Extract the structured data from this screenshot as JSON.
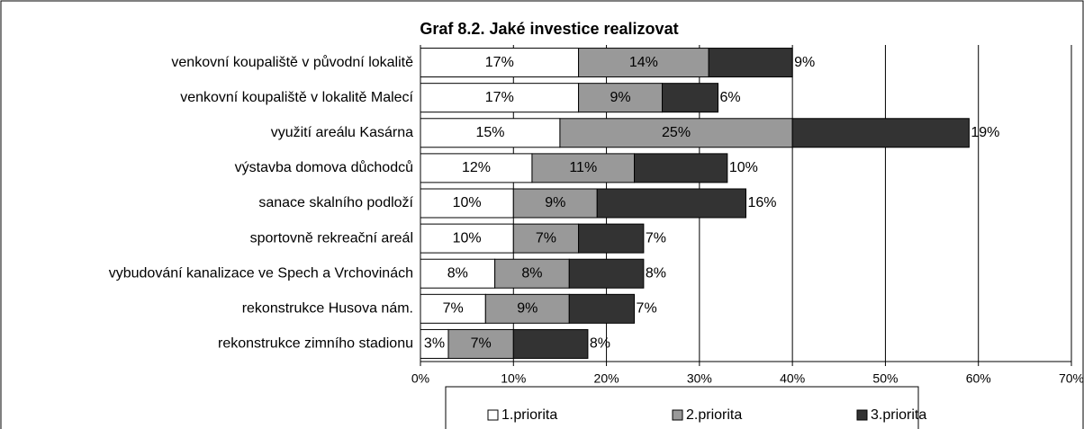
{
  "chart_data": {
    "type": "bar",
    "orientation": "horizontal",
    "stacked": true,
    "title": "Graf 8.2. Jaké investice realizovat",
    "categories": [
      "venkovní koupaliště v původní lokalitě",
      "venkovní koupaliště v lokalitě Malecí",
      "využití areálu Kasárna",
      "výstavba domova důchodců",
      "sanace skalního podloží",
      "sportovně rekreační areál",
      "vybudování kanalizace ve Spech a Vrchovinách",
      "rekonstrukce Husova nám.",
      "rekonstrukce zimního stadionu"
    ],
    "series": [
      {
        "name": "1.priorita",
        "color": "#ffffff",
        "values": [
          17,
          17,
          15,
          12,
          10,
          10,
          8,
          7,
          3
        ],
        "value_labels": [
          "17%",
          "17%",
          "15%",
          "12%",
          "10%",
          "10%",
          "8%",
          "7%",
          "3%"
        ]
      },
      {
        "name": "2.priorita",
        "color": "#999999",
        "values": [
          14,
          9,
          25,
          11,
          9,
          7,
          8,
          9,
          7
        ],
        "value_labels": [
          "14%",
          "9%",
          "25%",
          "11%",
          "9%",
          "7%",
          "8%",
          "9%",
          "7%"
        ]
      },
      {
        "name": "3.priorita",
        "color": "#333333",
        "values": [
          9,
          6,
          19,
          10,
          16,
          7,
          8,
          7,
          8
        ],
        "value_labels": [
          "9%",
          "6%",
          "19%",
          "10%",
          "16%",
          "7%",
          "8%",
          "7%",
          "8%"
        ]
      }
    ],
    "xlim": [
      0,
      70
    ],
    "xticks": [
      {
        "value": 0,
        "label": "0%"
      },
      {
        "value": 10,
        "label": "10%"
      },
      {
        "value": 20,
        "label": "20%"
      },
      {
        "value": 30,
        "label": "30%"
      },
      {
        "value": 40,
        "label": "40%"
      },
      {
        "value": 50,
        "label": "50%"
      },
      {
        "value": 60,
        "label": "60%"
      },
      {
        "value": 70,
        "label": "70%"
      }
    ],
    "grid": true,
    "legend": "bottom"
  }
}
